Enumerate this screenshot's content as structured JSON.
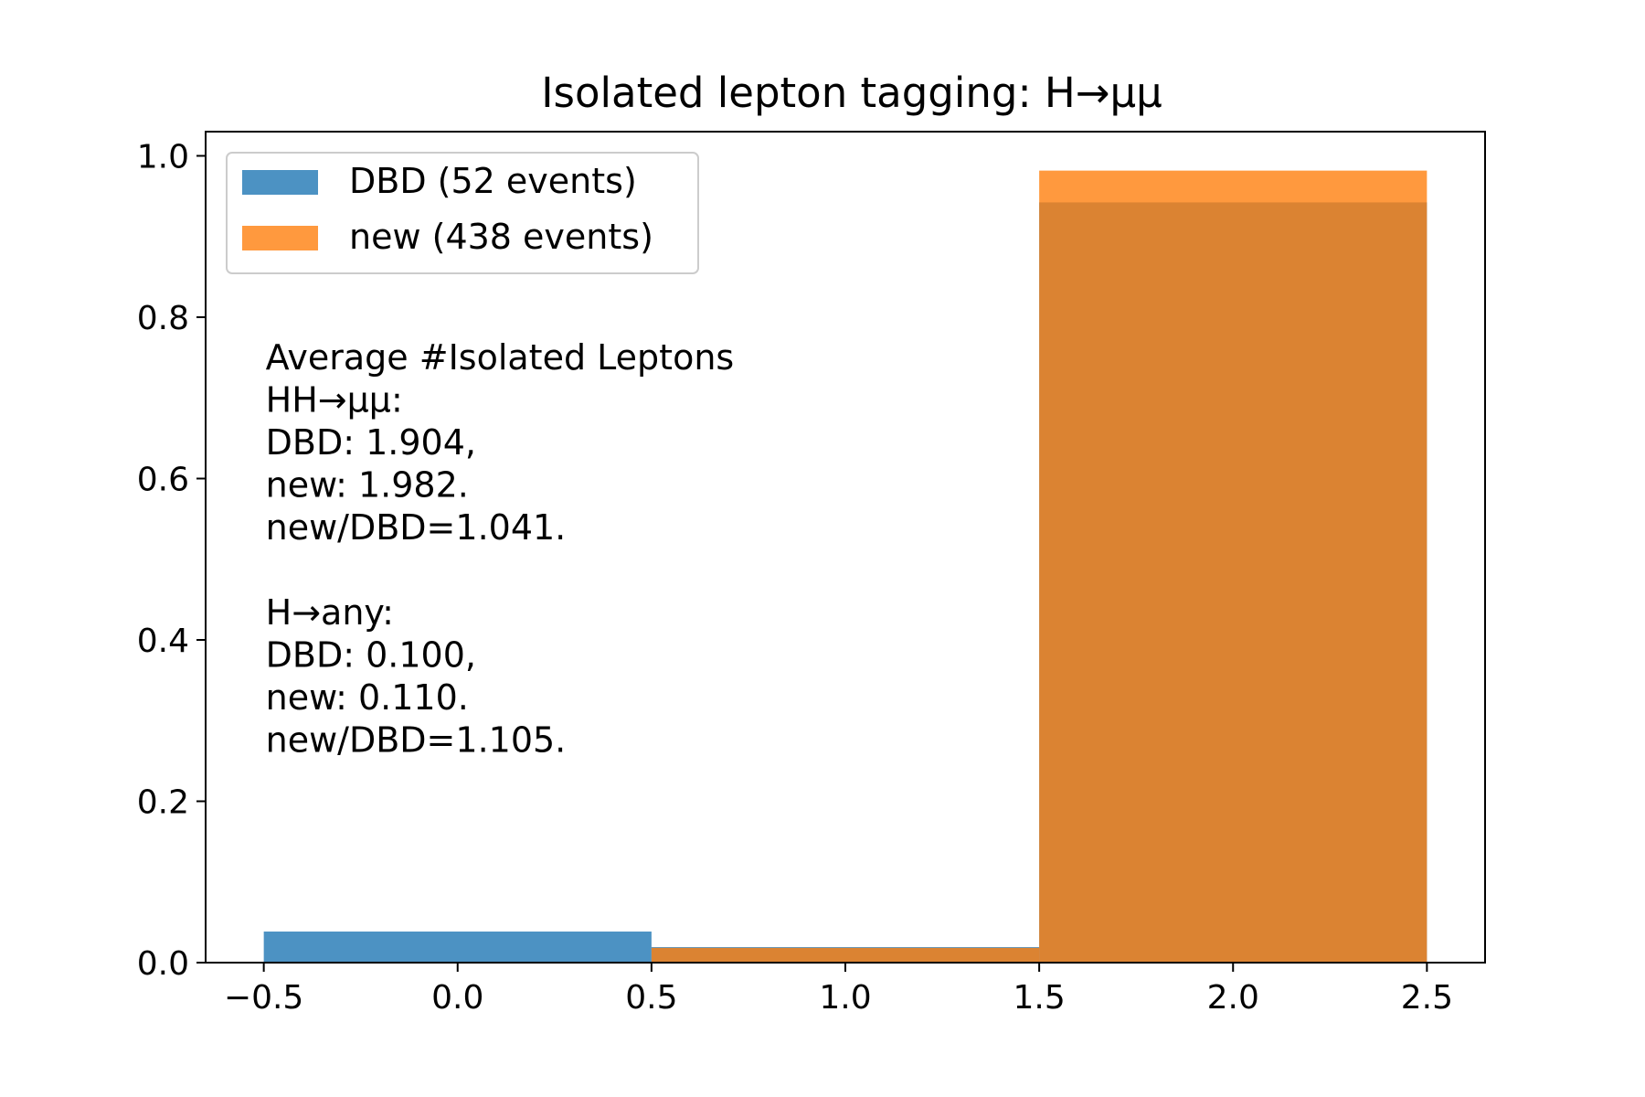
{
  "chart_data": {
    "type": "bar",
    "title": "Isolated lepton tagging: H→μμ",
    "xlabel": "",
    "ylabel": "",
    "xlim": [
      -0.65,
      2.65
    ],
    "ylim": [
      0.0,
      1.03
    ],
    "xticks": [
      -0.5,
      0.0,
      0.5,
      1.0,
      1.5,
      2.0,
      2.5
    ],
    "xtick_labels": [
      "−0.5",
      "0.0",
      "0.5",
      "1.0",
      "1.5",
      "2.0",
      "2.5"
    ],
    "yticks": [
      0.0,
      0.2,
      0.4,
      0.6,
      0.8,
      1.0
    ],
    "ytick_labels": [
      "0.0",
      "0.2",
      "0.4",
      "0.6",
      "0.8",
      "1.0"
    ],
    "bin_edges": [
      -0.5,
      0.5,
      1.5,
      2.5
    ],
    "series": [
      {
        "name": "DBD (52 events)",
        "color": "#1f77b4",
        "opacity": 0.8,
        "values": [
          0.0385,
          0.0192,
          0.9423
        ]
      },
      {
        "name": "new (438 events)",
        "color": "#ff7f0e",
        "opacity": 0.8,
        "values": [
          0.0,
          0.0183,
          0.9817
        ]
      }
    ],
    "legend_position": "upper-left",
    "grid": false,
    "annotation": [
      "Average #Isolated Leptons",
      "HH→μμ:",
      "DBD: 1.904,",
      "new: 1.982.",
      "new/DBD=1.041.",
      "",
      "H→any:",
      "DBD: 0.100,",
      "new: 0.110.",
      "new/DBD=1.105."
    ]
  }
}
